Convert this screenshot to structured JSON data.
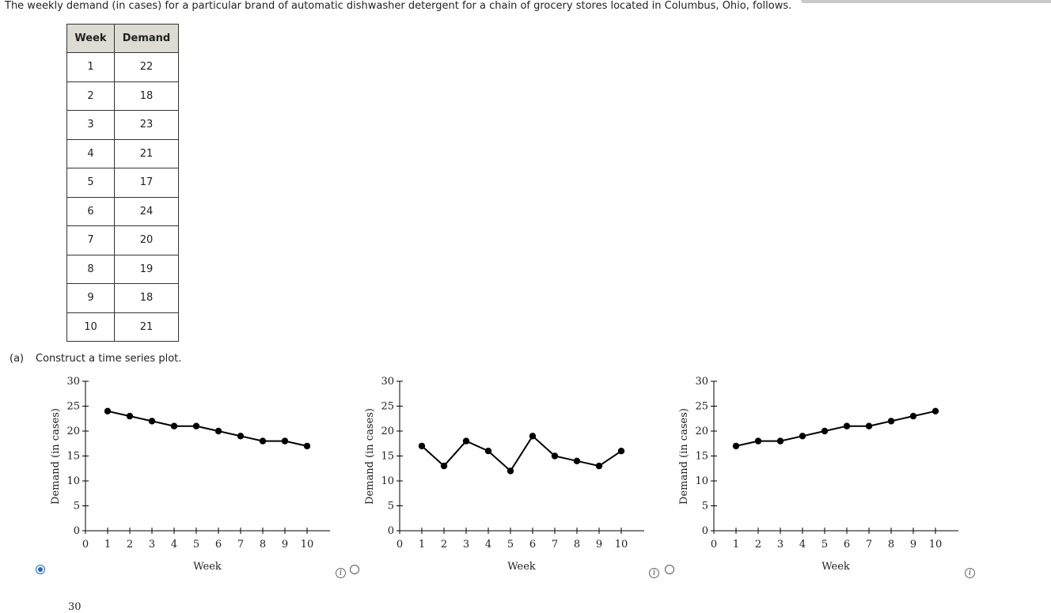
{
  "intro": "The weekly demand (in cases) for a particular brand of automatic dishwasher detergent for a chain of grocery stores located in Columbus, Ohio, follows.",
  "table": {
    "headers": [
      "Week",
      "Demand"
    ],
    "rows": [
      [
        "1",
        "22"
      ],
      [
        "2",
        "18"
      ],
      [
        "3",
        "23"
      ],
      [
        "4",
        "21"
      ],
      [
        "5",
        "17"
      ],
      [
        "6",
        "24"
      ],
      [
        "7",
        "20"
      ],
      [
        "8",
        "19"
      ],
      [
        "9",
        "18"
      ],
      [
        "10",
        "21"
      ]
    ]
  },
  "part_a": {
    "label": "(a)",
    "text": "Construct a time series plot."
  },
  "info_glyph": "i",
  "next_option_tick": "30",
  "options": [
    {
      "selected": true
    },
    {
      "selected": false
    },
    {
      "selected": false
    }
  ],
  "chart_data": [
    {
      "type": "line",
      "x": [
        1,
        2,
        3,
        4,
        5,
        6,
        7,
        8,
        9,
        10
      ],
      "series": [
        {
          "values": [
            24,
            23,
            22,
            21,
            21,
            20,
            19,
            18,
            18,
            17
          ]
        }
      ],
      "xlabel": "Week",
      "ylabel": "Demand (in cases)",
      "xlim": [
        0,
        11
      ],
      "ylim": [
        0,
        30
      ],
      "xticks": [
        0,
        1,
        2,
        3,
        4,
        5,
        6,
        7,
        8,
        9,
        10
      ],
      "yticks": [
        0,
        5,
        10,
        15,
        20,
        25,
        30
      ],
      "grid": false,
      "color": "#000000"
    },
    {
      "type": "line",
      "x": [
        1,
        2,
        3,
        4,
        5,
        6,
        7,
        8,
        9,
        10
      ],
      "series": [
        {
          "values": [
            17,
            13,
            18,
            16,
            12,
            19,
            15,
            14,
            13,
            16
          ]
        }
      ],
      "xlabel": "Week",
      "ylabel": "Demand (in cases)",
      "xlim": [
        0,
        11
      ],
      "ylim": [
        0,
        30
      ],
      "xticks": [
        0,
        1,
        2,
        3,
        4,
        5,
        6,
        7,
        8,
        9,
        10
      ],
      "yticks": [
        0,
        5,
        10,
        15,
        20,
        25,
        30
      ],
      "grid": false,
      "color": "#000000"
    },
    {
      "type": "line",
      "x": [
        1,
        2,
        3,
        4,
        5,
        6,
        7,
        8,
        9,
        10
      ],
      "series": [
        {
          "values": [
            17,
            18,
            18,
            19,
            20,
            21,
            21,
            22,
            23,
            24
          ]
        }
      ],
      "xlabel": "Week",
      "ylabel": "Demand (in cases)",
      "xlim": [
        0,
        11
      ],
      "ylim": [
        0,
        30
      ],
      "xticks": [
        0,
        1,
        2,
        3,
        4,
        5,
        6,
        7,
        8,
        9,
        10
      ],
      "yticks": [
        0,
        5,
        10,
        15,
        20,
        25,
        30
      ],
      "grid": false,
      "color": "#000000"
    }
  ]
}
